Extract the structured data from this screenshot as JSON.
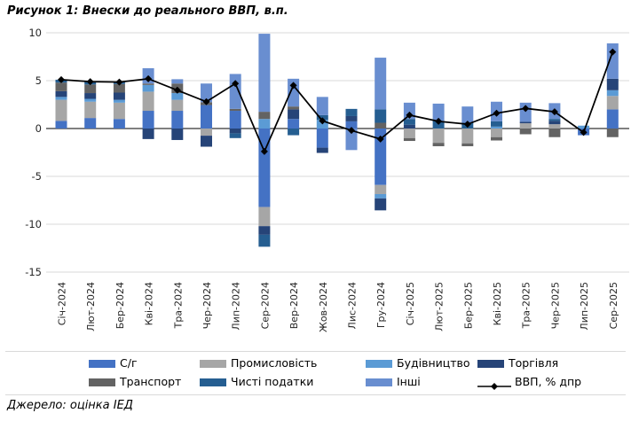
{
  "title": "Рисунок 1: Внески до реального ВВП, в.п.",
  "footer": "Джерело: оцінка ІЕД",
  "chart_data": {
    "type": "bar",
    "stacked": true,
    "overlay_line": true,
    "title": "Рисунок 1: Внески до реального ВВП, в.п.",
    "xlabel": "",
    "ylabel": "",
    "ylim": [
      -15,
      10
    ],
    "yticks": [
      10,
      5,
      0,
      -5,
      -10,
      -15
    ],
    "grid": true,
    "legend_position": "bottom",
    "categories": [
      "Січ-2024",
      "Лют-2024",
      "Бер-2024",
      "Кві-2024",
      "Тра-2024",
      "Чер-2024",
      "Лип-2024",
      "Сер-2024",
      "Вер-2024",
      "Жов-2024",
      "Лис-2024",
      "Гру-2024",
      "Січ-2025",
      "Лют-2025",
      "Бер-2025",
      "Кві-2025",
      "Тра-2025",
      "Чер-2025",
      "Лип-2025",
      "Сер-2025"
    ],
    "series": [
      {
        "name": "С/г",
        "color": "#4472C4",
        "values": [
          0.8,
          1.1,
          1.0,
          1.85,
          1.85,
          2.45,
          1.85,
          -8.2,
          1.0,
          -2.0,
          0.75,
          -5.9,
          0,
          0,
          0,
          0,
          0,
          0,
          -0.7,
          2.0
        ]
      },
      {
        "name": "Промисловість",
        "color": "#A6A6A6",
        "values": [
          2.2,
          1.7,
          1.7,
          2.0,
          1.15,
          -0.75,
          0,
          -2.0,
          0,
          0,
          0,
          -0.95,
          -1.0,
          -1.5,
          -1.55,
          -0.9,
          0.55,
          0.45,
          0,
          1.4
        ]
      },
      {
        "name": "Будівництво",
        "color": "#5B9BD5",
        "values": [
          0.3,
          0.3,
          0.3,
          0.7,
          0.7,
          0,
          0,
          1.0,
          0,
          0.9,
          0,
          -0.45,
          0,
          0,
          0,
          0.2,
          0,
          0,
          0.3,
          0.6
        ]
      },
      {
        "name": "Торгівля",
        "color": "#264478",
        "values": [
          0.6,
          0.6,
          0.75,
          -1.1,
          -1.2,
          -1.15,
          -0.5,
          -0.9,
          1.0,
          -0.55,
          0.55,
          -1.25,
          0.4,
          0,
          0,
          0,
          0.15,
          0.35,
          0,
          1.2
        ]
      },
      {
        "name": "Транспорт",
        "color": "#636363",
        "values": [
          0.9,
          0.9,
          0.9,
          0.15,
          1.0,
          0.3,
          0.2,
          0.75,
          0.3,
          0,
          0,
          0.6,
          -0.3,
          -0.35,
          -0.3,
          -0.35,
          -0.6,
          -0.9,
          0,
          -0.9
        ]
      },
      {
        "name": "Чисті податки",
        "color": "#255E91",
        "values": [
          0.3,
          0.3,
          0.2,
          0,
          0,
          0,
          -0.5,
          -1.25,
          -0.7,
          0.5,
          0.75,
          1.4,
          0.6,
          0.8,
          0.6,
          0.55,
          0,
          0.2,
          0,
          0
        ]
      },
      {
        "name": "Інші",
        "color": "#698ED0",
        "values": [
          0,
          0,
          0,
          1.6,
          0.45,
          1.95,
          3.65,
          8.15,
          2.9,
          1.9,
          -2.25,
          5.4,
          1.7,
          1.8,
          1.7,
          2.05,
          2.0,
          1.65,
          0,
          3.7
        ]
      }
    ],
    "line_series": {
      "name": "ВВП, % дпр",
      "color": "#000000",
      "marker": "diamond",
      "values": [
        5.1,
        4.9,
        4.85,
        5.2,
        4.0,
        2.8,
        4.7,
        -2.4,
        4.5,
        0.8,
        -0.2,
        -1.1,
        1.4,
        0.75,
        0.45,
        1.6,
        2.1,
        1.75,
        -0.4,
        8.0
      ]
    },
    "colors": {
      "gridline": "#D9D9D9",
      "zero_axis": "#000000",
      "tick_text": "#262626"
    }
  }
}
